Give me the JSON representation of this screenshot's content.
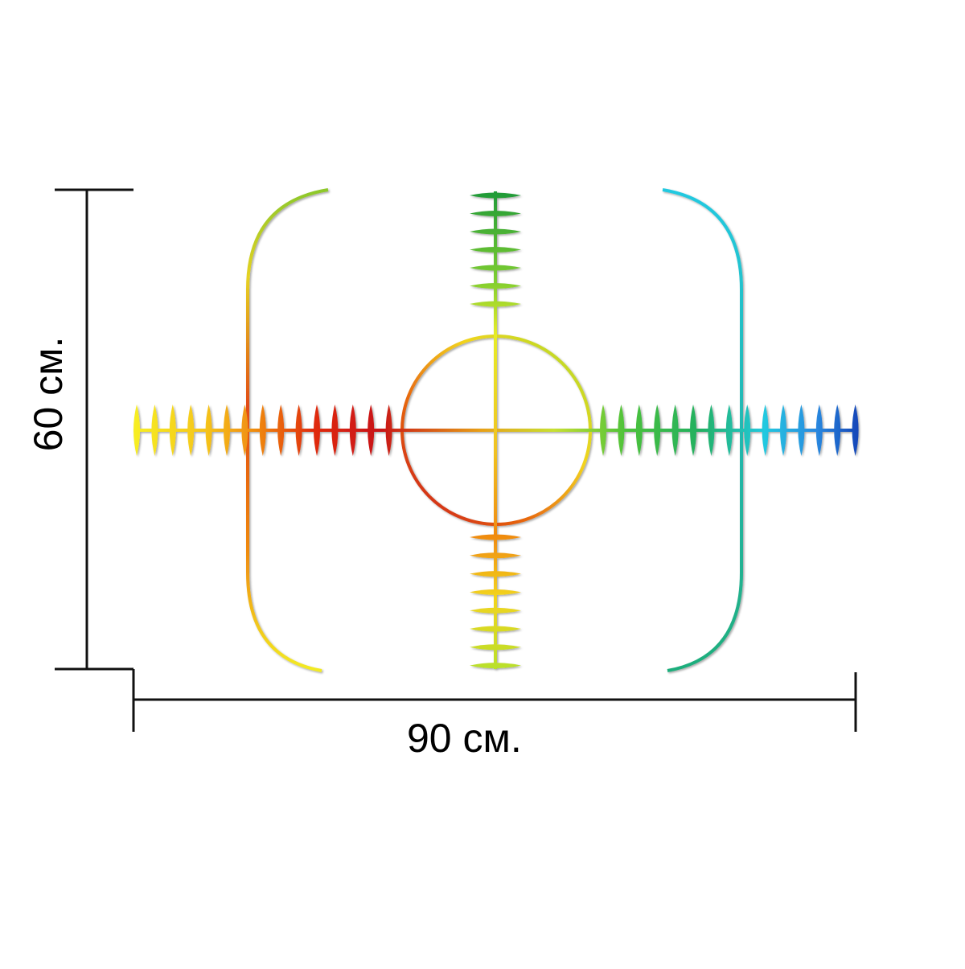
{
  "dimensions": {
    "width_label": "90 см.",
    "height_label": "60 см."
  },
  "print_size_cm": {
    "width": 90,
    "height": 60
  },
  "artwork": {
    "description_icon": "crosshair-rainbow-icon",
    "colors": {
      "red": "#d81414",
      "orange": "#f08a10",
      "yellow": "#f2e21a",
      "yellow_green": "#b6e02a",
      "green": "#22a83a",
      "cyan": "#23c9e0",
      "blue": "#1446b8",
      "line": "#111111"
    }
  }
}
